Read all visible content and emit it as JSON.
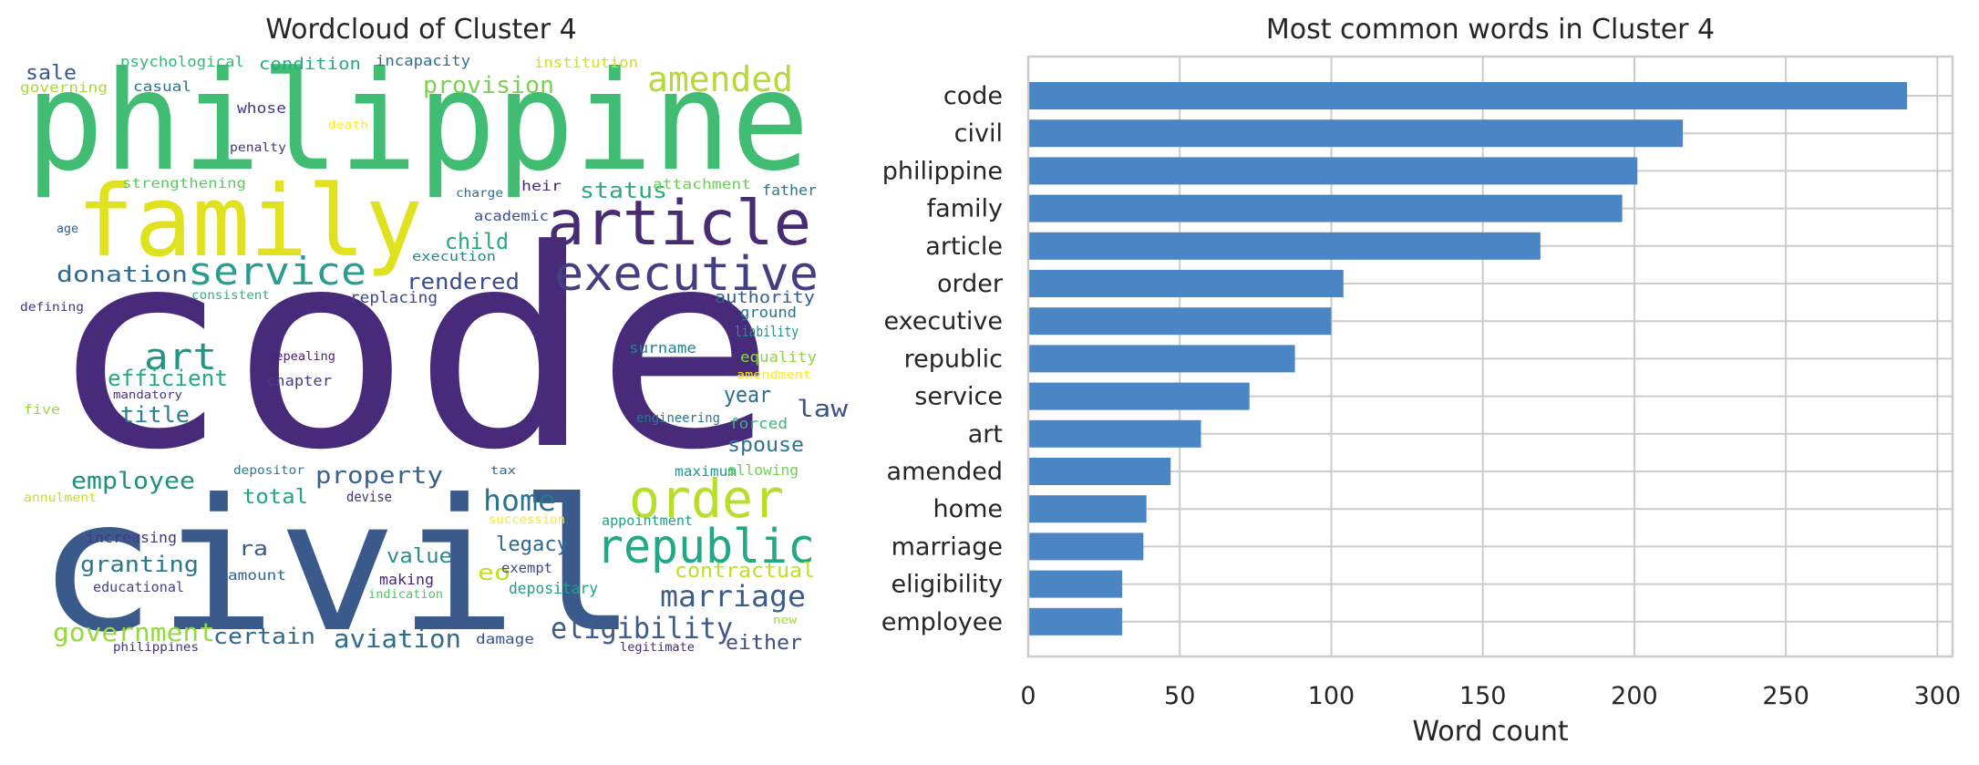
{
  "chart_data": [
    {
      "type": "wordcloud",
      "title": "Wordcloud of Cluster 4",
      "words": [
        {
          "text": "code",
          "color": "#472a7a"
        },
        {
          "text": "philippine",
          "color": "#40bd72"
        },
        {
          "text": "civil",
          "color": "#3b5a8c"
        },
        {
          "text": "family",
          "color": "#e0e220"
        },
        {
          "text": "article",
          "color": "#482c73"
        },
        {
          "text": "executive",
          "color": "#433f82"
        },
        {
          "text": "order",
          "color": "#b6de2b"
        },
        {
          "text": "republic",
          "color": "#22a884"
        },
        {
          "text": "service",
          "color": "#2a9d8f"
        },
        {
          "text": "amended",
          "color": "#b5d936"
        },
        {
          "text": "art",
          "color": "#229585"
        },
        {
          "text": "marriage",
          "color": "#3d5c8c"
        },
        {
          "text": "home",
          "color": "#2c728e"
        },
        {
          "text": "eligibility",
          "color": "#3f5b8c"
        },
        {
          "text": "government",
          "color": "#95d840"
        },
        {
          "text": "aviation",
          "color": "#2f6d8e"
        },
        {
          "text": "employee",
          "color": "#21907c"
        },
        {
          "text": "property",
          "color": "#3a618c"
        },
        {
          "text": "provision",
          "color": "#7ad151"
        },
        {
          "text": "donation",
          "color": "#2f6b8e"
        },
        {
          "text": "rendered",
          "color": "#3e4c8a"
        },
        {
          "text": "efficient",
          "color": "#24a884"
        },
        {
          "text": "child",
          "color": "#25a882"
        },
        {
          "text": "status",
          "color": "#2ea784"
        },
        {
          "text": "granting",
          "color": "#2b758e"
        },
        {
          "text": "title",
          "color": "#2c7d8e"
        },
        {
          "text": "law",
          "color": "#3c558b"
        },
        {
          "text": "year",
          "color": "#2c6e8e"
        },
        {
          "text": "spouse",
          "color": "#2e708e"
        },
        {
          "text": "total",
          "color": "#20a386"
        },
        {
          "text": "legacy",
          "color": "#31688e"
        },
        {
          "text": "value",
          "color": "#2c8c8c"
        },
        {
          "text": "contractual",
          "color": "#bddf26"
        },
        {
          "text": "ra",
          "color": "#3c5a8b"
        },
        {
          "text": "certain",
          "color": "#306a8e"
        },
        {
          "text": "either",
          "color": "#3e4c8a"
        },
        {
          "text": "eo",
          "color": "#c0df25"
        },
        {
          "text": "sale",
          "color": "#38588c"
        },
        {
          "text": "authority",
          "color": "#365c8d"
        },
        {
          "text": "condition",
          "color": "#25ab82"
        },
        {
          "text": "incapacity",
          "color": "#2d708e"
        },
        {
          "text": "institution",
          "color": "#d2e21b"
        },
        {
          "text": "psychological",
          "color": "#35b779"
        },
        {
          "text": "governing",
          "color": "#a8db34"
        },
        {
          "text": "casual",
          "color": "#2d718e"
        },
        {
          "text": "whose",
          "color": "#443983"
        },
        {
          "text": "death",
          "color": "#fde725"
        },
        {
          "text": "penalty",
          "color": "#46327e"
        },
        {
          "text": "strengthening",
          "color": "#5ec962"
        },
        {
          "text": "attachment",
          "color": "#6ccd5a"
        },
        {
          "text": "father",
          "color": "#2a788e"
        },
        {
          "text": "charge",
          "color": "#2c728e"
        },
        {
          "text": "heir",
          "color": "#482576"
        },
        {
          "text": "age",
          "color": "#33638d"
        },
        {
          "text": "academic",
          "color": "#3b528b"
        },
        {
          "text": "execution",
          "color": "#24878e"
        },
        {
          "text": "consistent",
          "color": "#2fb47c"
        },
        {
          "text": "replacing",
          "color": "#3f4889"
        },
        {
          "text": "defining",
          "color": "#453781"
        },
        {
          "text": "ground",
          "color": "#2a788e"
        },
        {
          "text": "liability",
          "color": "#21918c"
        },
        {
          "text": "repealing",
          "color": "#482475"
        },
        {
          "text": "chapter",
          "color": "#433e85"
        },
        {
          "text": "surname",
          "color": "#26828e"
        },
        {
          "text": "equality",
          "color": "#8fd744"
        },
        {
          "text": "amendment",
          "color": "#fde725"
        },
        {
          "text": "mandatory",
          "color": "#46337f"
        },
        {
          "text": "five",
          "color": "#9fda3a"
        },
        {
          "text": "engineering",
          "color": "#2a788e"
        },
        {
          "text": "forced",
          "color": "#35b779"
        },
        {
          "text": "depositor",
          "color": "#29798e"
        },
        {
          "text": "tax",
          "color": "#31688e"
        },
        {
          "text": "maximum",
          "color": "#1f988b"
        },
        {
          "text": "allowing",
          "color": "#74d055"
        },
        {
          "text": "devise",
          "color": "#46307e"
        },
        {
          "text": "annulment",
          "color": "#c8e020"
        },
        {
          "text": "succession",
          "color": "#fde725"
        },
        {
          "text": "appointment",
          "color": "#1fa187"
        },
        {
          "text": "increasing",
          "color": "#443a83"
        },
        {
          "text": "amount",
          "color": "#33638d"
        },
        {
          "text": "educational",
          "color": "#404688"
        },
        {
          "text": "making",
          "color": "#482878"
        },
        {
          "text": "indication",
          "color": "#52c569"
        },
        {
          "text": "exempt",
          "color": "#3e4989"
        },
        {
          "text": "depositary",
          "color": "#1fa088"
        },
        {
          "text": "damage",
          "color": "#3a548c"
        },
        {
          "text": "new",
          "color": "#9dd93b"
        },
        {
          "text": "philippines",
          "color": "#46327e"
        },
        {
          "text": "legitimate",
          "color": "#472d7b"
        }
      ]
    },
    {
      "type": "bar",
      "orientation": "horizontal",
      "title": "Most common words in Cluster 4",
      "xlabel": "Word count",
      "ylabel": "",
      "xlim": [
        0,
        305
      ],
      "xticks": [
        0,
        50,
        100,
        150,
        200,
        250,
        300
      ],
      "grid": true,
      "bar_color": "#4a86c5",
      "categories": [
        "code",
        "civil",
        "philippine",
        "family",
        "article",
        "order",
        "executive",
        "republic",
        "service",
        "art",
        "amended",
        "home",
        "marriage",
        "eligibility",
        "employee"
      ],
      "values": [
        290,
        216,
        201,
        196,
        169,
        104,
        100,
        88,
        73,
        57,
        47,
        39,
        38,
        31,
        31
      ]
    }
  ]
}
